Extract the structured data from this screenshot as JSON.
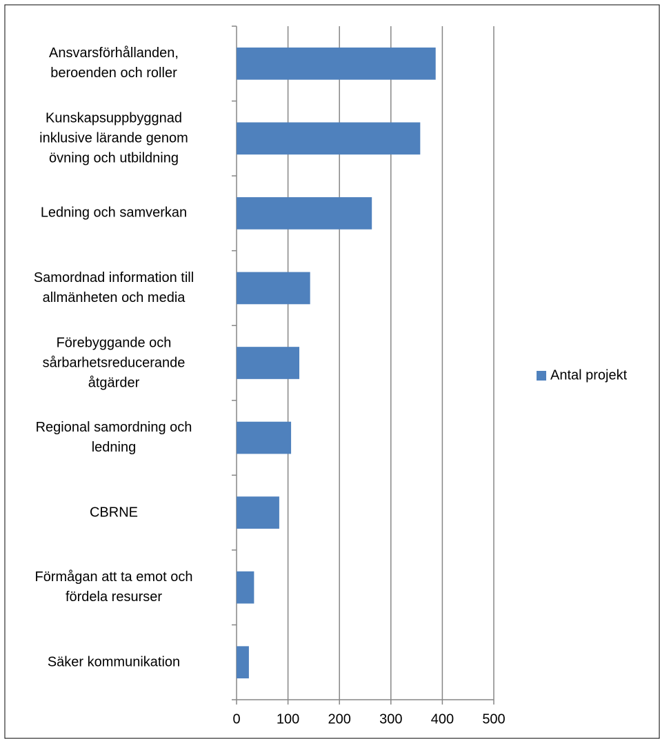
{
  "chart_data": {
    "type": "bar",
    "orientation": "horizontal",
    "categories": [
      "Ansvarsförhållanden,\nberoenden och roller",
      "Kunskapsuppbyggnad\ninklusive lärande genom\növning och utbildning",
      "Ledning och samverkan",
      "Samordnad information till\nallmänheten och media",
      "Förebyggande och\nsårbarhetsreducerande\nåtgärder",
      "Regional samordning och\nledning",
      "CBRNE",
      "Förmågan att ta emot och\nfördela resurser",
      "Säker kommunikation"
    ],
    "series": [
      {
        "name": "Antal projekt",
        "color": "#4f81bd",
        "values": [
          387,
          357,
          263,
          143,
          122,
          106,
          83,
          34,
          24
        ]
      }
    ],
    "xlim": [
      0,
      500
    ],
    "xticks": [
      0,
      100,
      200,
      300,
      400,
      500
    ],
    "grid": true,
    "legend": "right"
  }
}
